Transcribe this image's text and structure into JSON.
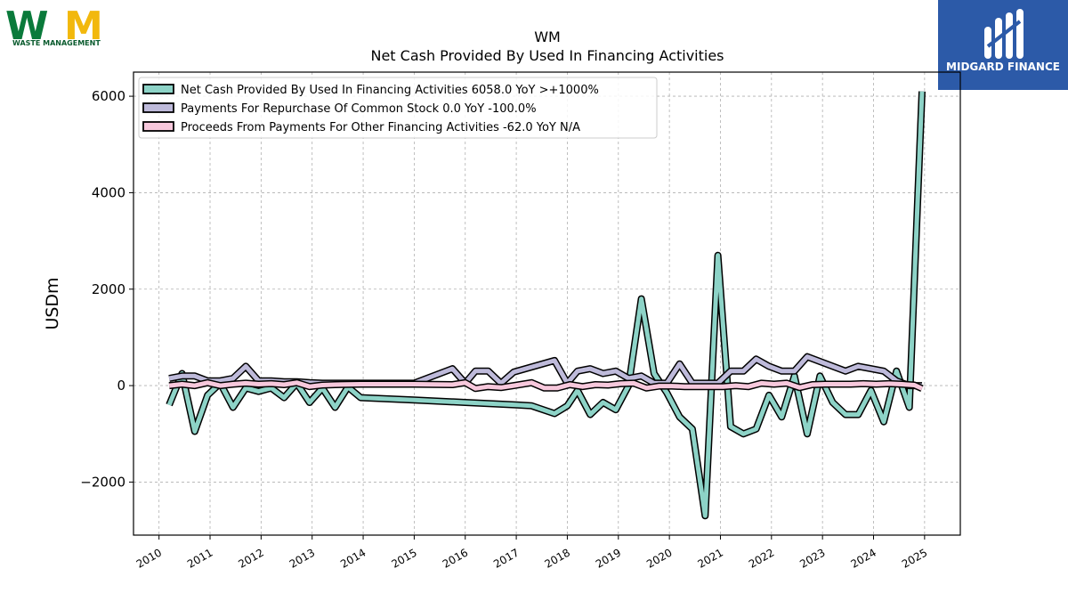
{
  "brand": {
    "company_logo_text": "WM",
    "company_logo_subtext": "WASTE MANAGEMENT",
    "publisher_logo_text": "MIDGARD FINANCE",
    "colors": {
      "wm_green": "#0a7a3b",
      "wm_yellow": "#f2b80d",
      "publisher_blue": "#2c5aa8"
    }
  },
  "chart_data": {
    "type": "line",
    "title": "WM",
    "subtitle": "Net Cash Provided By Used In Financing Activities",
    "ylabel": "USDm",
    "xlabel": "",
    "ylim": [
      -3100,
      6500
    ],
    "xlim": [
      2009.5,
      2025.7
    ],
    "yticks": [
      -2000,
      0,
      2000,
      4000,
      6000
    ],
    "ytick_labels": [
      "−2000",
      "0",
      "2000",
      "4000",
      "6000"
    ],
    "xticks": [
      2010,
      2011,
      2012,
      2013,
      2014,
      2015,
      2016,
      2017,
      2018,
      2019,
      2020,
      2021,
      2022,
      2023,
      2024,
      2025
    ],
    "xtick_labels": [
      "2010",
      "2011",
      "2012",
      "2013",
      "2014",
      "2015",
      "2016",
      "2017",
      "2018",
      "2019",
      "2020",
      "2021",
      "2022",
      "2023",
      "2024",
      "2025"
    ],
    "grid": true,
    "legend_position": "top-left",
    "series": [
      {
        "name": "Net Cash Provided By Used In Financing Activities  6058.0 YoY >+1000%",
        "color": "#8dd3c7",
        "points": [
          [
            2010.2,
            -400
          ],
          [
            2010.45,
            250
          ],
          [
            2010.7,
            -950
          ],
          [
            2010.95,
            -200
          ],
          [
            2011.2,
            50
          ],
          [
            2011.45,
            -450
          ],
          [
            2011.7,
            -50
          ],
          [
            2011.95,
            -120
          ],
          [
            2012.2,
            -50
          ],
          [
            2012.45,
            -250
          ],
          [
            2012.7,
            50
          ],
          [
            2012.95,
            -350
          ],
          [
            2013.2,
            -50
          ],
          [
            2013.45,
            -450
          ],
          [
            2013.7,
            -30
          ],
          [
            2013.95,
            -250
          ],
          [
            2015.0,
            -300
          ],
          [
            2016.0,
            -350
          ],
          [
            2017.0,
            -400
          ],
          [
            2017.3,
            -420
          ],
          [
            2017.75,
            -580
          ],
          [
            2018.0,
            -420
          ],
          [
            2018.2,
            -100
          ],
          [
            2018.45,
            -600
          ],
          [
            2018.7,
            -350
          ],
          [
            2018.95,
            -500
          ],
          [
            2019.2,
            0
          ],
          [
            2019.45,
            1800
          ],
          [
            2019.7,
            250
          ],
          [
            2019.95,
            -150
          ],
          [
            2020.2,
            -650
          ],
          [
            2020.45,
            -900
          ],
          [
            2020.7,
            -2700
          ],
          [
            2020.95,
            2700
          ],
          [
            2021.2,
            -850
          ],
          [
            2021.45,
            -1000
          ],
          [
            2021.7,
            -900
          ],
          [
            2021.95,
            -200
          ],
          [
            2022.2,
            -650
          ],
          [
            2022.45,
            200
          ],
          [
            2022.7,
            -1000
          ],
          [
            2022.95,
            200
          ],
          [
            2023.2,
            -350
          ],
          [
            2023.45,
            -600
          ],
          [
            2023.7,
            -600
          ],
          [
            2023.95,
            -100
          ],
          [
            2024.2,
            -750
          ],
          [
            2024.45,
            300
          ],
          [
            2024.7,
            -450
          ],
          [
            2024.95,
            6100
          ]
        ]
      },
      {
        "name": "Payments For Repurchase Of Common Stock  0.0 YoY -100.0%",
        "color": "#bebada",
        "points": [
          [
            2010.2,
            150
          ],
          [
            2010.45,
            200
          ],
          [
            2010.7,
            200
          ],
          [
            2010.95,
            100
          ],
          [
            2011.2,
            100
          ],
          [
            2011.45,
            150
          ],
          [
            2011.7,
            400
          ],
          [
            2011.95,
            100
          ],
          [
            2012.2,
            100
          ],
          [
            2012.45,
            80
          ],
          [
            2012.7,
            80
          ],
          [
            2012.95,
            60
          ],
          [
            2013.2,
            50
          ],
          [
            2013.45,
            50
          ],
          [
            2013.95,
            50
          ],
          [
            2015.0,
            50
          ],
          [
            2015.75,
            350
          ],
          [
            2016.0,
            50
          ],
          [
            2016.2,
            300
          ],
          [
            2016.45,
            300
          ],
          [
            2016.7,
            50
          ],
          [
            2016.95,
            280
          ],
          [
            2017.75,
            520
          ],
          [
            2018.0,
            50
          ],
          [
            2018.2,
            300
          ],
          [
            2018.45,
            350
          ],
          [
            2018.7,
            250
          ],
          [
            2018.95,
            300
          ],
          [
            2019.2,
            150
          ],
          [
            2019.45,
            200
          ],
          [
            2019.7,
            50
          ],
          [
            2019.95,
            50
          ],
          [
            2020.2,
            450
          ],
          [
            2020.45,
            50
          ],
          [
            2020.7,
            50
          ],
          [
            2020.95,
            50
          ],
          [
            2021.2,
            300
          ],
          [
            2021.45,
            300
          ],
          [
            2021.7,
            550
          ],
          [
            2021.95,
            400
          ],
          [
            2022.2,
            300
          ],
          [
            2022.45,
            300
          ],
          [
            2022.7,
            600
          ],
          [
            2022.95,
            500
          ],
          [
            2023.2,
            400
          ],
          [
            2023.45,
            300
          ],
          [
            2023.7,
            400
          ],
          [
            2023.95,
            350
          ],
          [
            2024.2,
            300
          ],
          [
            2024.45,
            100
          ],
          [
            2024.7,
            0
          ],
          [
            2024.95,
            0
          ]
        ]
      },
      {
        "name": "Proceeds From Payments For Other Financing Activities  -62.0 YoY N/A",
        "color": "#f7c8dc",
        "points": [
          [
            2010.2,
            0
          ],
          [
            2010.45,
            30
          ],
          [
            2010.7,
            0
          ],
          [
            2010.95,
            60
          ],
          [
            2011.2,
            0
          ],
          [
            2011.45,
            30
          ],
          [
            2011.7,
            50
          ],
          [
            2011.95,
            30
          ],
          [
            2012.2,
            40
          ],
          [
            2012.45,
            20
          ],
          [
            2012.7,
            60
          ],
          [
            2012.95,
            -20
          ],
          [
            2013.2,
            10
          ],
          [
            2013.45,
            20
          ],
          [
            2013.95,
            30
          ],
          [
            2015.0,
            30
          ],
          [
            2015.75,
            20
          ],
          [
            2016.0,
            60
          ],
          [
            2016.2,
            -60
          ],
          [
            2016.45,
            -20
          ],
          [
            2016.7,
            -40
          ],
          [
            2016.95,
            0
          ],
          [
            2017.3,
            60
          ],
          [
            2017.55,
            -50
          ],
          [
            2017.8,
            -50
          ],
          [
            2018.05,
            20
          ],
          [
            2018.3,
            -20
          ],
          [
            2018.55,
            20
          ],
          [
            2018.8,
            10
          ],
          [
            2019.05,
            40
          ],
          [
            2019.3,
            50
          ],
          [
            2019.55,
            -50
          ],
          [
            2019.8,
            -10
          ],
          [
            2020.05,
            -10
          ],
          [
            2020.3,
            -20
          ],
          [
            2020.55,
            -20
          ],
          [
            2020.8,
            -20
          ],
          [
            2021.05,
            -20
          ],
          [
            2021.3,
            0
          ],
          [
            2021.55,
            -20
          ],
          [
            2021.8,
            50
          ],
          [
            2022.05,
            30
          ],
          [
            2022.3,
            50
          ],
          [
            2022.55,
            -40
          ],
          [
            2022.8,
            20
          ],
          [
            2023.05,
            30
          ],
          [
            2023.3,
            30
          ],
          [
            2023.55,
            30
          ],
          [
            2023.8,
            40
          ],
          [
            2024.05,
            30
          ],
          [
            2024.3,
            40
          ],
          [
            2024.55,
            30
          ],
          [
            2024.8,
            10
          ],
          [
            2024.95,
            -62
          ]
        ]
      }
    ]
  }
}
